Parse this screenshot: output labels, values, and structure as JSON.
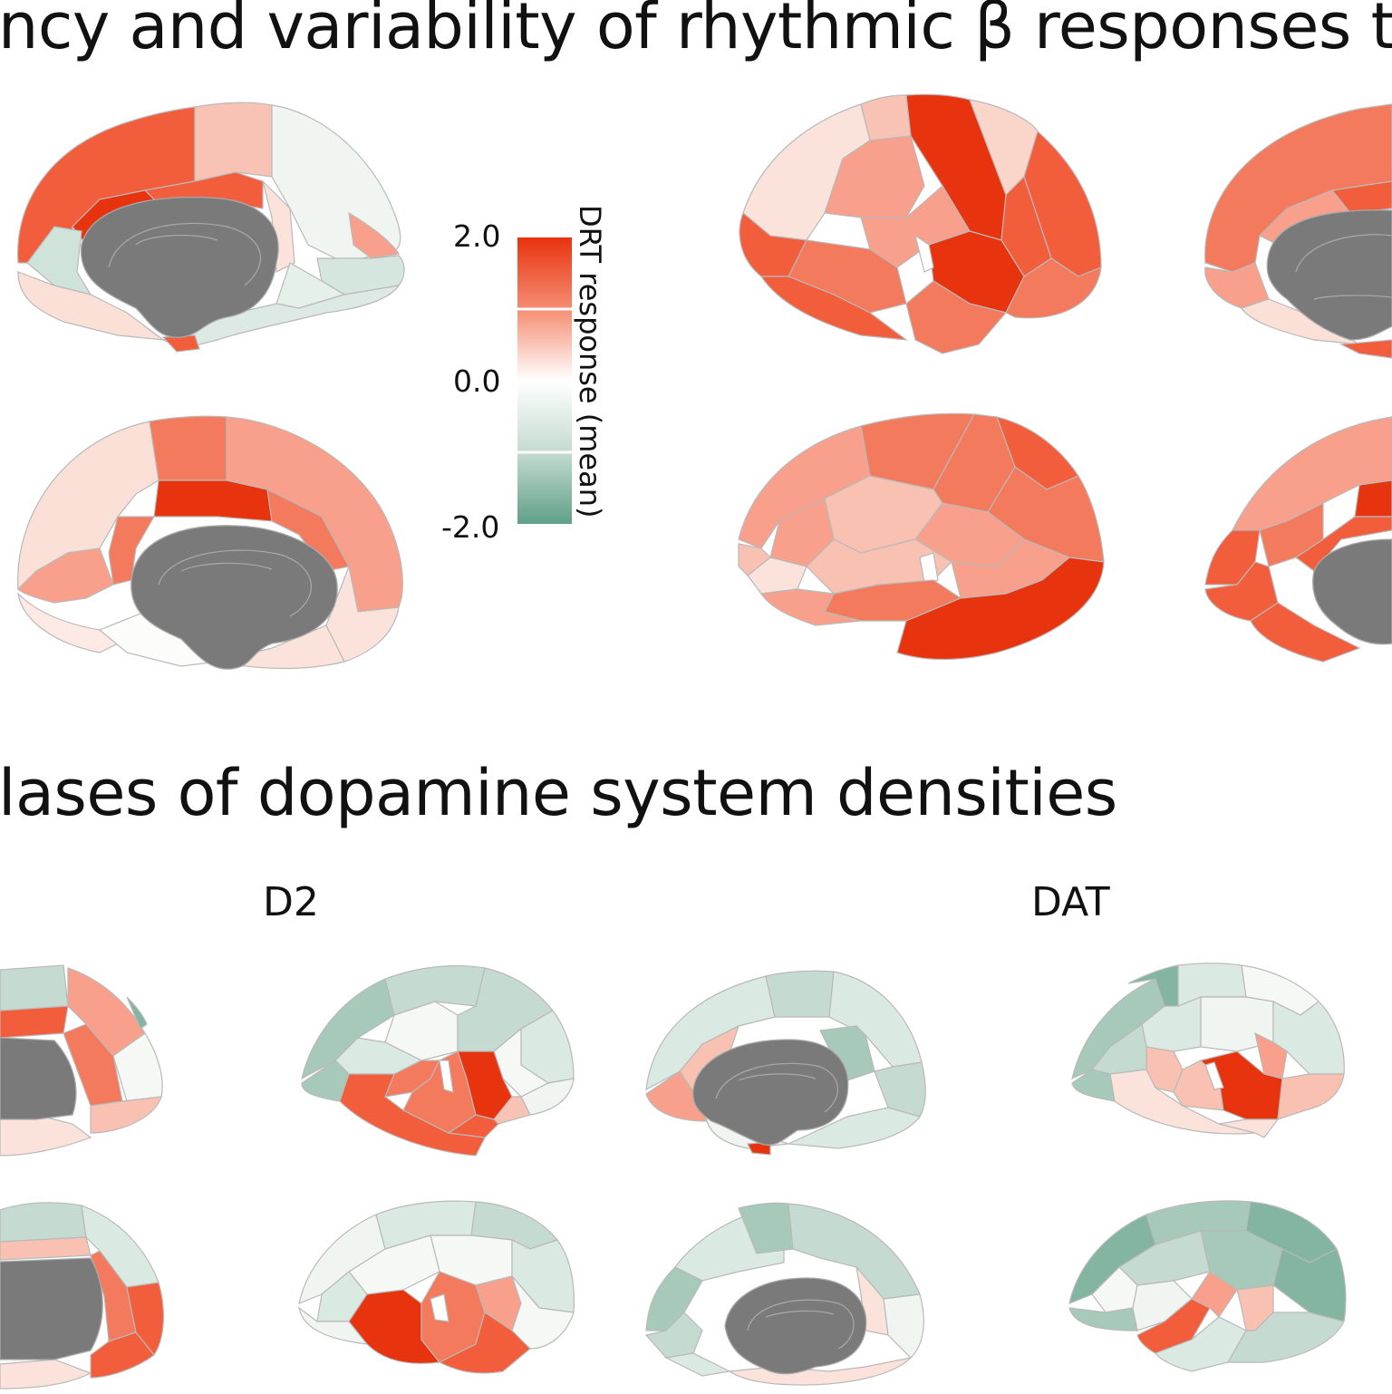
{
  "titles": {
    "top": "ncy and variability of rhythmic β responses t",
    "middle": "lases of dopamine system densities"
  },
  "receptor_labels": {
    "d2": "D2",
    "dat": "DAT"
  },
  "colorbar": {
    "title": "DRT response (mean)",
    "ticks": [
      "2.0",
      "0.0",
      "-2.0"
    ],
    "range": [
      -2.0,
      2.0
    ],
    "colors": {
      "high": "#e8330f",
      "mid": "#ffffff",
      "low": "#5fa088"
    }
  },
  "palette": {
    "dark_red": "#e8330f",
    "red": "#f25d3c",
    "orange_red": "#f47a5d",
    "salmon": "#f8a08b",
    "light_salmon": "#f9c1b2",
    "pale": "#fbe3dc",
    "near_white": "#f6f8f6",
    "pale_green": "#dbe9e3",
    "light_green": "#c5dbd1",
    "green": "#a7c9b9",
    "teal": "#84b5a1",
    "core_gray": "#7a7a7a"
  }
}
